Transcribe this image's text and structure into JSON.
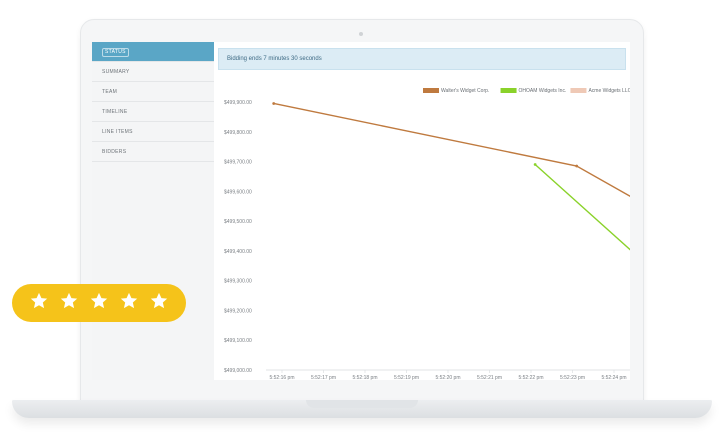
{
  "sidebar": {
    "items": [
      {
        "label": "STATUS",
        "active": true
      },
      {
        "label": "SUMMARY",
        "active": false
      },
      {
        "label": "TEAM",
        "active": false
      },
      {
        "label": "TIMELINE",
        "active": false
      },
      {
        "label": "LINE ITEMS",
        "active": false
      },
      {
        "label": "BIDDERS",
        "active": false
      }
    ]
  },
  "banner": {
    "text": "Bidding ends 7 minutes 30 seconds"
  },
  "rating": {
    "stars": 5,
    "max": 5,
    "color": "#f5c31a"
  },
  "chart_data": {
    "type": "line",
    "title": "",
    "xlabel": "",
    "ylabel": "",
    "legend_position": "top-right",
    "grid": false,
    "x": [
      "5:52:16 pm",
      "5:52:17 pm",
      "5:52:18 pm",
      "5:52:19 pm",
      "5:52:20 pm",
      "5:52:21 pm",
      "5:52:22 pm",
      "5:52:23 pm",
      "5:52:24 pm",
      "5:52:25 pm"
    ],
    "xlim_index": [
      0,
      9.45
    ],
    "y_ticks": [
      "$499,900.00",
      "$499,800.00",
      "$499,700.00",
      "$499,600.00",
      "$499,500.00",
      "$499,400.00",
      "$499,300.00",
      "$499,200.00",
      "$499,100.00",
      "$499,000.00"
    ],
    "y_tick_values": [
      499900,
      499800,
      499700,
      499600,
      499500,
      499400,
      499300,
      499200,
      499100,
      499000
    ],
    "ylim": [
      499000,
      499900
    ],
    "series": [
      {
        "name": "Walter's Widget Corp.",
        "color": "#bf7a3f",
        "points": [
          {
            "x": -0.2,
            "y": 499895
          },
          {
            "x": 7.1,
            "y": 499685
          },
          {
            "x": 9.45,
            "y": 499500
          }
        ]
      },
      {
        "name": "OHOAM Widgets Inc.",
        "color": "#8ad22a",
        "points": [
          {
            "x": 6.1,
            "y": 499690
          },
          {
            "x": 8.9,
            "y": 499340
          }
        ]
      },
      {
        "name": "Acme Widgets LLC",
        "color": "#efc9b6",
        "points": []
      }
    ]
  }
}
